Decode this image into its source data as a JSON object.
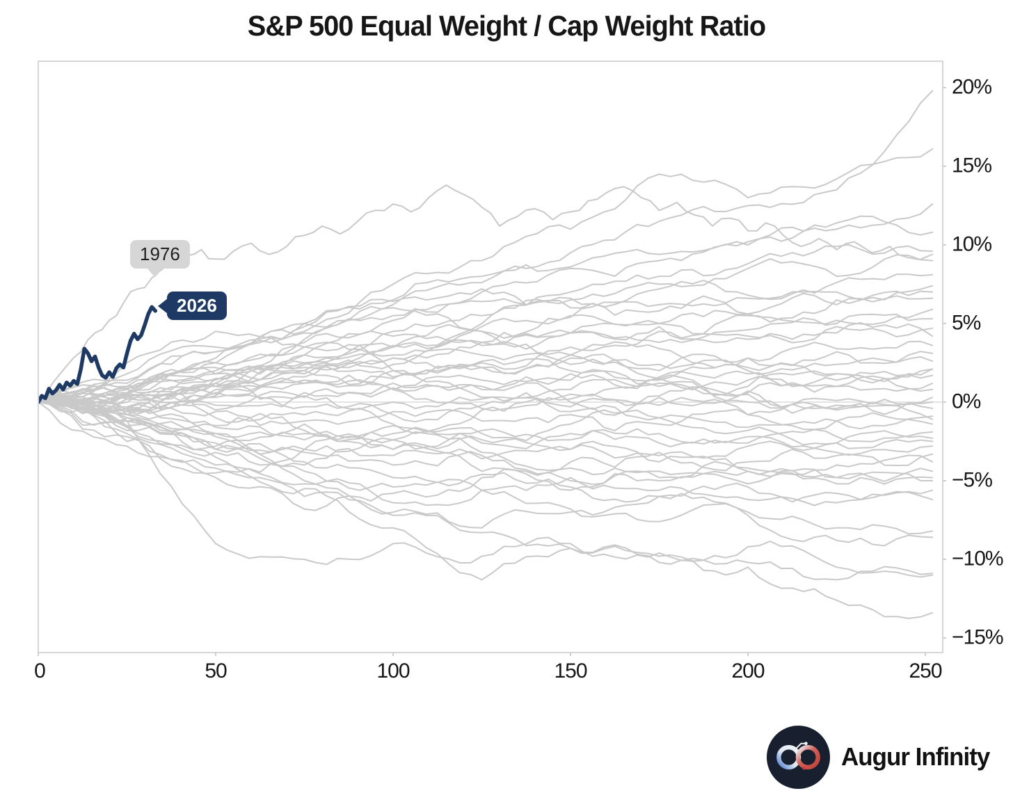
{
  "title": "S&P 500 Equal Weight / Cap Weight Ratio",
  "branding": {
    "name": "Augur Infinity"
  },
  "colors": {
    "simulation_line": "#c9c9c9",
    "highlight_line": "#1e3a64",
    "frame": "#d6d6d6",
    "zero_line": "#dcdcdc",
    "tick_mark": "#cfcfcf",
    "badge_past_bg": "#d6d6d6",
    "badge_past_text": "#1f1f1f",
    "badge_current_bg": "#1e3a64",
    "badge_current_text": "#ffffff",
    "logo_bg": "#182030",
    "logo_blue": "#4d7fd1",
    "logo_red": "#c2413a",
    "logo_white": "#f2f5f9"
  },
  "chart_data": {
    "type": "line",
    "title": "S&P 500 Equal Weight / Cap Weight Ratio",
    "xlabel": "",
    "ylabel": "",
    "grid": false,
    "legend": "none",
    "xlim": [
      0,
      252
    ],
    "ylim": [
      -15.9,
      21.7
    ],
    "x_ticks": [
      0,
      50,
      100,
      150,
      200,
      250
    ],
    "x_tick_labels": [
      "0",
      "50",
      "100",
      "150",
      "200",
      "250"
    ],
    "y_ticks": [
      20,
      15,
      10,
      5,
      0,
      -5,
      -10,
      -15
    ],
    "y_tick_labels": [
      "20%",
      "15%",
      "10%",
      "5%",
      "0%",
      "−5%",
      "−10%",
      "−15%"
    ],
    "zero_line": true,
    "annotations": [
      {
        "text": "1976",
        "points_to": {
          "day": 34,
          "pct": 8.3
        }
      },
      {
        "text": "2026",
        "points_to": {
          "day": 33,
          "pct": 5.8
        }
      }
    ],
    "highlight_series": {
      "name": "2026",
      "points": [
        [
          0,
          0
        ],
        [
          1,
          0.4
        ],
        [
          2,
          0.25
        ],
        [
          3,
          0.85
        ],
        [
          4,
          0.55
        ],
        [
          5,
          0.75
        ],
        [
          6,
          1.1
        ],
        [
          7,
          0.8
        ],
        [
          8,
          1.25
        ],
        [
          9,
          1.05
        ],
        [
          10,
          1.35
        ],
        [
          11,
          1.15
        ],
        [
          12,
          2.1
        ],
        [
          13,
          3.4
        ],
        [
          14,
          3.1
        ],
        [
          15,
          2.6
        ],
        [
          16,
          2.9
        ],
        [
          17,
          2.2
        ],
        [
          18,
          1.7
        ],
        [
          19,
          1.55
        ],
        [
          20,
          1.9
        ],
        [
          21,
          1.6
        ],
        [
          22,
          2.15
        ],
        [
          23,
          2.4
        ],
        [
          24,
          2.2
        ],
        [
          25,
          3.1
        ],
        [
          26,
          3.9
        ],
        [
          27,
          4.35
        ],
        [
          28,
          4.0
        ],
        [
          29,
          4.25
        ],
        [
          30,
          4.9
        ],
        [
          31,
          5.6
        ],
        [
          32,
          6.05
        ],
        [
          33,
          5.8
        ]
      ]
    },
    "labeled_series": {
      "name": "1976",
      "points": [
        [
          0,
          0
        ],
        [
          4,
          1.2
        ],
        [
          8,
          2.3
        ],
        [
          12,
          3.2
        ],
        [
          16,
          4.4
        ],
        [
          20,
          5.2
        ],
        [
          24,
          6.3
        ],
        [
          28,
          7.2
        ],
        [
          32,
          7.9
        ],
        [
          34,
          8.3
        ],
        [
          38,
          8.9
        ],
        [
          42,
          9.3
        ],
        [
          46,
          9.7
        ],
        [
          50,
          9.1
        ],
        [
          55,
          9.6
        ],
        [
          60,
          10.1
        ],
        [
          65,
          9.4
        ],
        [
          70,
          9.9
        ],
        [
          75,
          10.6
        ],
        [
          80,
          11.2
        ],
        [
          85,
          10.7
        ],
        [
          90,
          11.5
        ],
        [
          95,
          12.2
        ],
        [
          100,
          12.6
        ],
        [
          105,
          12.1
        ],
        [
          110,
          13.0
        ],
        [
          115,
          13.8
        ],
        [
          120,
          13.2
        ],
        [
          125,
          12.4
        ],
        [
          130,
          11.2
        ],
        [
          135,
          11.8
        ],
        [
          140,
          12.3
        ],
        [
          145,
          11.6
        ],
        [
          150,
          12.1
        ],
        [
          155,
          12.8
        ],
        [
          160,
          13.3
        ],
        [
          165,
          13.7
        ],
        [
          170,
          13.0
        ],
        [
          175,
          12.2
        ],
        [
          180,
          12.7
        ],
        [
          185,
          11.9
        ],
        [
          190,
          11.2
        ],
        [
          195,
          11.7
        ],
        [
          200,
          10.9
        ],
        [
          205,
          11.4
        ],
        [
          210,
          10.6
        ],
        [
          215,
          9.9
        ],
        [
          220,
          10.4
        ],
        [
          225,
          9.7
        ],
        [
          230,
          10.2
        ],
        [
          235,
          9.5
        ],
        [
          240,
          9.9
        ],
        [
          245,
          9.2
        ],
        [
          252,
          9.4
        ]
      ]
    },
    "background_series": {
      "description": "Historical year paths of equal-weight vs cap-weight YTD relative performance by trading day",
      "x_waypoints": [
        0,
        25,
        50,
        75,
        100,
        125,
        150,
        175,
        200,
        225,
        252
      ],
      "values": [
        [
          0,
          1.2,
          3.2,
          5.0,
          6.5,
          8.0,
          9.5,
          11.5,
          12.5,
          13.5,
          19.8
        ],
        [
          0,
          0.8,
          2.5,
          4.5,
          7.5,
          9.0,
          11.0,
          14.5,
          13.0,
          14.2,
          16.1
        ],
        [
          0,
          0.5,
          2.0,
          4.0,
          5.5,
          7.0,
          8.5,
          9.0,
          10.0,
          11.0,
          12.6
        ],
        [
          0,
          1.0,
          2.8,
          4.4,
          6.2,
          7.6,
          8.6,
          9.4,
          10.2,
          11.4,
          10.8
        ],
        [
          0,
          0.4,
          1.5,
          3.0,
          4.5,
          5.5,
          7.0,
          8.0,
          8.8,
          9.9,
          9.6
        ],
        [
          0,
          -0.5,
          1.0,
          2.5,
          3.5,
          5.0,
          6.5,
          7.5,
          8.5,
          8.0,
          9.0
        ],
        [
          0,
          0.6,
          2.2,
          3.8,
          5.2,
          6.4,
          6.0,
          7.2,
          6.8,
          7.6,
          8.1
        ],
        [
          0,
          1.4,
          3.2,
          4.8,
          6.4,
          7.2,
          6.6,
          5.8,
          6.6,
          7.0,
          7.4
        ],
        [
          0,
          0.3,
          1.2,
          2.4,
          3.6,
          4.8,
          5.4,
          6.2,
          5.6,
          6.2,
          6.6
        ],
        [
          0,
          0.8,
          1.8,
          3.0,
          4.2,
          3.6,
          4.4,
          5.0,
          5.6,
          5.2,
          5.9
        ],
        [
          0,
          -0.8,
          0.5,
          1.8,
          2.8,
          3.8,
          4.4,
          3.8,
          4.6,
          5.0,
          5.3
        ],
        [
          0,
          0.5,
          1.5,
          2.5,
          3.5,
          4.5,
          5.5,
          5.0,
          4.2,
          4.8,
          4.7
        ],
        [
          0,
          1.0,
          2.5,
          3.5,
          3.0,
          3.8,
          4.4,
          4.8,
          4.0,
          4.4,
          4.2
        ],
        [
          0,
          0.2,
          1.0,
          2.0,
          2.8,
          2.2,
          3.0,
          3.4,
          2.8,
          3.4,
          3.6
        ],
        [
          0,
          -0.4,
          0.8,
          1.6,
          2.4,
          3.0,
          2.4,
          2.0,
          2.8,
          3.2,
          3.1
        ],
        [
          0,
          0.6,
          1.4,
          2.2,
          1.6,
          2.2,
          2.8,
          2.4,
          2.0,
          2.4,
          2.6
        ],
        [
          0,
          0.9,
          1.8,
          1.2,
          2.0,
          2.6,
          2.0,
          1.6,
          2.2,
          1.8,
          2.1
        ],
        [
          0,
          -0.6,
          0.4,
          1.2,
          0.8,
          1.4,
          1.8,
          1.4,
          1.8,
          1.4,
          1.7
        ],
        [
          0,
          0.4,
          1.2,
          0.6,
          1.2,
          0.8,
          1.4,
          1.0,
          1.4,
          1.0,
          1.2
        ],
        [
          0,
          -0.3,
          0.6,
          1.4,
          0.8,
          0.2,
          0.8,
          1.2,
          0.6,
          1.0,
          0.8
        ],
        [
          0,
          0.5,
          -0.5,
          0.3,
          0.9,
          0.3,
          -0.3,
          0.3,
          0.7,
          0.1,
          0.3
        ],
        [
          0,
          0.2,
          -0.2,
          0.4,
          0.0,
          -0.4,
          0.2,
          0.4,
          0.0,
          -0.2,
          0.0
        ],
        [
          0,
          -0.5,
          0.3,
          -0.3,
          -0.8,
          -0.2,
          -0.6,
          -0.2,
          -0.8,
          -0.4,
          -0.4
        ],
        [
          0,
          0.3,
          -0.6,
          -1.2,
          -0.6,
          -1.2,
          -0.8,
          -1.4,
          -0.8,
          -1.2,
          -0.9
        ],
        [
          0,
          -0.8,
          -1.5,
          -0.8,
          -1.4,
          -2.0,
          -1.4,
          -1.0,
          -1.6,
          -1.2,
          -1.4
        ],
        [
          0,
          -0.4,
          -1.0,
          -1.8,
          -2.4,
          -1.8,
          -2.4,
          -2.0,
          -2.6,
          -2.2,
          -1.9
        ],
        [
          0,
          -1.2,
          -2.0,
          -1.4,
          -2.0,
          -2.6,
          -2.0,
          -2.6,
          -2.2,
          -2.6,
          -2.3
        ],
        [
          0,
          -0.6,
          -1.6,
          -2.4,
          -3.0,
          -2.4,
          -3.0,
          -3.4,
          -2.8,
          -3.2,
          -2.8
        ],
        [
          0,
          -1.0,
          -2.2,
          -3.0,
          -2.4,
          -3.2,
          -3.8,
          -3.2,
          -3.8,
          -3.4,
          -3.3
        ],
        [
          0,
          -1.5,
          -2.8,
          -2.0,
          -3.0,
          -3.6,
          -3.0,
          -3.8,
          -4.4,
          -4.0,
          -3.8
        ],
        [
          0,
          -0.8,
          -2.0,
          -3.2,
          -4.0,
          -3.4,
          -4.2,
          -4.8,
          -4.2,
          -4.8,
          -4.4
        ],
        [
          0,
          -1.8,
          -3.0,
          -4.0,
          -3.4,
          -4.4,
          -5.0,
          -4.4,
          -5.2,
          -4.8,
          -5.0
        ],
        [
          0,
          -1.2,
          -2.6,
          -3.8,
          -4.8,
          -5.6,
          -4.8,
          -5.6,
          -6.2,
          -5.8,
          -5.6
        ],
        [
          0,
          -1.2,
          -9.0,
          -10.0,
          -9.0,
          -9.8,
          -9.0,
          -9.6,
          -10.2,
          -11.3,
          -10.9
        ],
        [
          0,
          -2.0,
          -4.2,
          -6.0,
          -7.2,
          -8.3,
          -9.3,
          -10.2,
          -9.2,
          -10.5,
          -11.0
        ],
        [
          0,
          -1.5,
          -3.5,
          -5.5,
          -8.0,
          -11.3,
          -9.3,
          -9.8,
          -10.5,
          -12.6,
          -13.4
        ],
        [
          0,
          -2.5,
          -4.0,
          -5.2,
          -6.4,
          -5.6,
          -6.8,
          -7.6,
          -7.0,
          -8.0,
          -8.2
        ],
        [
          0,
          -1.0,
          -3.0,
          -5.0,
          -7.0,
          -8.0,
          -7.0,
          -6.0,
          -7.2,
          -8.8,
          -8.6
        ],
        [
          0,
          -1.6,
          -3.2,
          -4.4,
          -5.4,
          -4.6,
          -5.4,
          -6.0,
          -5.4,
          -6.4,
          -6.2
        ],
        [
          0,
          -2.2,
          -4.8,
          -6.8,
          -5.8,
          -4.8,
          -5.6,
          -5.0,
          -4.4,
          -5.2,
          -4.8
        ],
        [
          0,
          1.8,
          3.5,
          5.0,
          6.0,
          4.5,
          3.0,
          1.5,
          0.5,
          -0.5,
          -1.1
        ],
        [
          0,
          2.5,
          4.5,
          3.5,
          2.0,
          1.0,
          0.0,
          -1.0,
          -1.8,
          -2.6,
          -2.5
        ],
        [
          0,
          -2.8,
          -4.5,
          -3.0,
          -1.5,
          -0.5,
          0.5,
          1.5,
          1.0,
          1.8,
          2.1
        ],
        [
          0,
          0.0,
          1.0,
          2.0,
          1.5,
          2.5,
          3.5,
          4.5,
          5.5,
          6.5,
          7.0
        ]
      ]
    }
  }
}
